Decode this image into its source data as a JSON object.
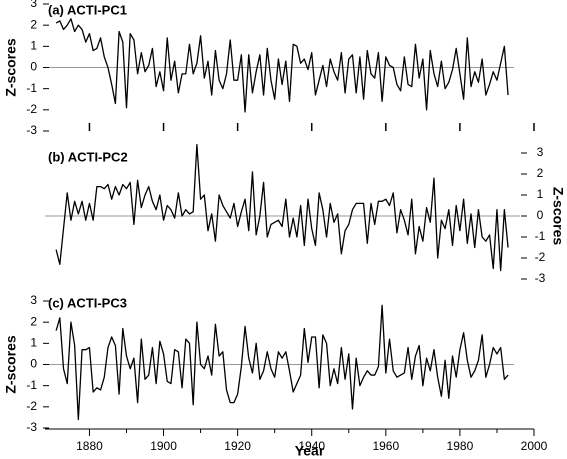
{
  "chart_data": [
    {
      "type": "line",
      "title": "(a) ACTI-PC1",
      "ylabel": "Z-scores",
      "y_axis_side": "left",
      "ylim": [
        -3,
        3
      ],
      "yticks": [
        -3,
        -2,
        -1,
        0,
        1,
        2,
        3
      ],
      "hline": 0,
      "color": "#000000",
      "x": [
        1871,
        1872,
        1873,
        1874,
        1875,
        1876,
        1877,
        1878,
        1879,
        1880,
        1881,
        1882,
        1883,
        1884,
        1885,
        1886,
        1887,
        1888,
        1889,
        1890,
        1891,
        1892,
        1893,
        1894,
        1895,
        1896,
        1897,
        1898,
        1899,
        1900,
        1901,
        1902,
        1903,
        1904,
        1905,
        1906,
        1907,
        1908,
        1909,
        1910,
        1911,
        1912,
        1913,
        1914,
        1915,
        1916,
        1917,
        1918,
        1919,
        1920,
        1921,
        1922,
        1923,
        1924,
        1925,
        1926,
        1927,
        1928,
        1929,
        1930,
        1931,
        1932,
        1933,
        1934,
        1935,
        1936,
        1937,
        1938,
        1939,
        1940,
        1941,
        1942,
        1943,
        1944,
        1945,
        1946,
        1947,
        1948,
        1949,
        1950,
        1951,
        1952,
        1953,
        1954,
        1955,
        1956,
        1957,
        1958,
        1959,
        1960,
        1961,
        1962,
        1963,
        1964,
        1965,
        1966,
        1967,
        1968,
        1969,
        1970,
        1971,
        1972,
        1973,
        1974,
        1975,
        1976,
        1977,
        1978,
        1979,
        1980,
        1981,
        1982,
        1983,
        1984,
        1985,
        1986,
        1987,
        1988,
        1989,
        1990,
        1991,
        1992,
        1993
      ],
      "values": [
        2.1,
        2.2,
        1.8,
        2.0,
        2.3,
        1.7,
        2.0,
        1.8,
        1.2,
        1.6,
        0.8,
        0.9,
        1.4,
        0.5,
        0.0,
        -0.8,
        -1.7,
        1.7,
        1.2,
        -1.9,
        1.6,
        1.3,
        -0.3,
        0.7,
        -0.2,
        0.1,
        0.9,
        -0.9,
        -0.2,
        -1.1,
        1.4,
        -0.6,
        0.3,
        -1.2,
        -0.3,
        -0.3,
        1.1,
        -0.3,
        0.2,
        1.5,
        -0.5,
        0.3,
        -1.3,
        0.8,
        -0.6,
        -1.0,
        -0.3,
        1.3,
        -0.6,
        -0.6,
        0.6,
        -2.1,
        0.6,
        -1.2,
        -0.2,
        0.6,
        -1.3,
        0.9,
        -0.6,
        -1.5,
        0.4,
        -0.8,
        0.3,
        -1.6,
        1.1,
        1.0,
        0.2,
        0.4,
        -0.1,
        0.7,
        -1.3,
        -0.6,
        0.1,
        -0.9,
        0.4,
        -0.2,
        -0.6,
        0.7,
        -1.2,
        0.4,
        0.6,
        -1.2,
        0.5,
        -1.5,
        0.8,
        -0.3,
        -0.5,
        0.7,
        -1.6,
        0.5,
        0.1,
        0.0,
        -0.8,
        -1.1,
        0.5,
        -0.8,
        -0.9,
        1.1,
        -0.5,
        0.4,
        -2.0,
        0.8,
        -0.3,
        -0.9,
        0.3,
        -1.0,
        -0.7,
        -0.1,
        0.9,
        -0.3,
        -1.5,
        1.4,
        -0.9,
        -0.2,
        -0.7,
        0.4,
        -1.3,
        -0.8,
        -0.2,
        -0.6,
        0.2,
        1.0,
        -1.3
      ]
    },
    {
      "type": "line",
      "title": "(b) ACTI-PC2",
      "ylabel": "Z-scores",
      "y_axis_side": "right",
      "ylim": [
        -3,
        3
      ],
      "yticks": [
        -3,
        -2,
        -1,
        0,
        1,
        2,
        3
      ],
      "hline": 0,
      "color": "#000000",
      "x": [
        1871,
        1872,
        1873,
        1874,
        1875,
        1876,
        1877,
        1878,
        1879,
        1880,
        1881,
        1882,
        1883,
        1884,
        1885,
        1886,
        1887,
        1888,
        1889,
        1890,
        1891,
        1892,
        1893,
        1894,
        1895,
        1896,
        1897,
        1898,
        1899,
        1900,
        1901,
        1902,
        1903,
        1904,
        1905,
        1906,
        1907,
        1908,
        1909,
        1910,
        1911,
        1912,
        1913,
        1914,
        1915,
        1916,
        1917,
        1918,
        1919,
        1920,
        1921,
        1922,
        1923,
        1924,
        1925,
        1926,
        1927,
        1928,
        1929,
        1930,
        1931,
        1932,
        1933,
        1934,
        1935,
        1936,
        1937,
        1938,
        1939,
        1940,
        1941,
        1942,
        1943,
        1944,
        1945,
        1946,
        1947,
        1948,
        1949,
        1950,
        1951,
        1952,
        1953,
        1954,
        1955,
        1956,
        1957,
        1958,
        1959,
        1960,
        1961,
        1962,
        1963,
        1964,
        1965,
        1966,
        1967,
        1968,
        1969,
        1970,
        1971,
        1972,
        1973,
        1974,
        1975,
        1976,
        1977,
        1978,
        1979,
        1980,
        1981,
        1982,
        1983,
        1984,
        1985,
        1986,
        1987,
        1988,
        1989,
        1990,
        1991,
        1992,
        1993
      ],
      "values": [
        -1.6,
        -2.3,
        -0.6,
        1.1,
        -0.2,
        0.7,
        0.1,
        0.7,
        -0.2,
        0.6,
        -0.2,
        1.4,
        1.4,
        1.3,
        1.5,
        0.8,
        1.4,
        1.0,
        1.5,
        1.3,
        1.6,
        -0.4,
        1.7,
        0.4,
        1.0,
        1.4,
        0.7,
        0.3,
        1.0,
        -0.2,
        0.5,
        0.3,
        -0.1,
        1.1,
        0.0,
        0.3,
        0.1,
        0.2,
        3.4,
        0.8,
        1.0,
        -0.7,
        0.1,
        -1.2,
        1.0,
        0.5,
        0.2,
        -0.1,
        0.6,
        -0.5,
        0.2,
        0.8,
        -0.7,
        2.1,
        -0.9,
        0.0,
        1.6,
        -1.0,
        -0.4,
        -0.3,
        -0.2,
        -0.5,
        0.8,
        -1.0,
        -0.1,
        -1.0,
        0.5,
        -1.4,
        0.8,
        -0.6,
        -1.4,
        1.1,
        0.3,
        -1.0,
        0.6,
        -0.3,
        0.1,
        -1.8,
        -0.7,
        -0.4,
        0.3,
        0.6,
        0.6,
        0.6,
        -1.3,
        0.6,
        -0.4,
        0.7,
        0.7,
        0.8,
        0.5,
        1.1,
        -0.8,
        0.3,
        -0.2,
        -0.9,
        0.8,
        -1.8,
        -0.5,
        -1.2,
        0.4,
        -0.3,
        1.8,
        -2.0,
        -0.2,
        -0.6,
        0.3,
        -1.4,
        0.5,
        -0.7,
        0.8,
        -1.3,
        0.1,
        -1.5,
        0.3,
        -1.0,
        -1.2,
        -0.9,
        -2.5,
        0.3,
        -2.6,
        0.3,
        -1.5
      ]
    },
    {
      "type": "line",
      "title": "(c) ACTI-PC3",
      "ylabel": "Z-scores",
      "xlabel": "Year",
      "y_axis_side": "left",
      "ylim": [
        -3,
        3
      ],
      "yticks": [
        -3,
        -2,
        -1,
        0,
        1,
        2,
        3
      ],
      "xlim": [
        1868,
        2000
      ],
      "xticks": [
        1880,
        1900,
        1920,
        1940,
        1960,
        1980,
        2000
      ],
      "hline": 0,
      "color": "#000000",
      "x": [
        1871,
        1872,
        1873,
        1874,
        1875,
        1876,
        1877,
        1878,
        1879,
        1880,
        1881,
        1882,
        1883,
        1884,
        1885,
        1886,
        1887,
        1888,
        1889,
        1890,
        1891,
        1892,
        1893,
        1894,
        1895,
        1896,
        1897,
        1898,
        1899,
        1900,
        1901,
        1902,
        1903,
        1904,
        1905,
        1906,
        1907,
        1908,
        1909,
        1910,
        1911,
        1912,
        1913,
        1914,
        1915,
        1916,
        1917,
        1918,
        1919,
        1920,
        1921,
        1922,
        1923,
        1924,
        1925,
        1926,
        1927,
        1928,
        1929,
        1930,
        1931,
        1932,
        1933,
        1934,
        1935,
        1936,
        1937,
        1938,
        1939,
        1940,
        1941,
        1942,
        1943,
        1944,
        1945,
        1946,
        1947,
        1948,
        1949,
        1950,
        1951,
        1952,
        1953,
        1954,
        1955,
        1956,
        1957,
        1958,
        1959,
        1960,
        1961,
        1962,
        1963,
        1964,
        1965,
        1966,
        1967,
        1968,
        1969,
        1970,
        1971,
        1972,
        1973,
        1974,
        1975,
        1976,
        1977,
        1978,
        1979,
        1980,
        1981,
        1982,
        1983,
        1984,
        1985,
        1986,
        1987,
        1988,
        1989,
        1990,
        1991,
        1992,
        1993
      ],
      "values": [
        1.6,
        2.2,
        -0.2,
        -0.9,
        2.0,
        0.9,
        -2.6,
        0.7,
        0.7,
        0.8,
        -1.3,
        -1.1,
        -1.2,
        -0.6,
        0.8,
        1.3,
        0.9,
        -1.4,
        1.7,
        0.4,
        -0.2,
        0.3,
        -1.8,
        1.2,
        -0.7,
        -0.5,
        0.8,
        -0.9,
        1.1,
        0.5,
        -0.8,
        -0.9,
        0.7,
        0.6,
        -1.1,
        1.2,
        1.0,
        -1.9,
        2.0,
        0.0,
        -0.2,
        0.4,
        -0.5,
        1.9,
        0.4,
        0.6,
        -1.2,
        -1.8,
        -1.8,
        -1.4,
        -0.1,
        1.8,
        0.3,
        -0.4,
        1.0,
        -0.7,
        -0.3,
        0.6,
        -0.2,
        -0.6,
        0.6,
        0.3,
        0.6,
        -0.3,
        -1.3,
        -0.9,
        -0.5,
        1.7,
        0.1,
        1.3,
        1.3,
        -1.1,
        1.4,
        1.0,
        -1.0,
        -0.2,
        -0.9,
        0.8,
        -0.7,
        0.5,
        -2.1,
        0.3,
        -1.0,
        -0.6,
        -0.3,
        -0.5,
        -0.5,
        -0.1,
        2.8,
        -0.4,
        1.2,
        -0.3,
        -0.6,
        -0.5,
        -0.4,
        0.8,
        -0.7,
        0.4,
        0.9,
        -1.0,
        0.3,
        -0.3,
        0.7,
        -0.6,
        -1.5,
        0.2,
        -1.6,
        0.4,
        -0.6,
        0.7,
        1.5,
        0.2,
        -0.6,
        -0.3,
        0.2,
        1.4,
        -0.6,
        0.0,
        0.8,
        0.5,
        0.8,
        -0.7,
        -0.5
      ]
    }
  ]
}
